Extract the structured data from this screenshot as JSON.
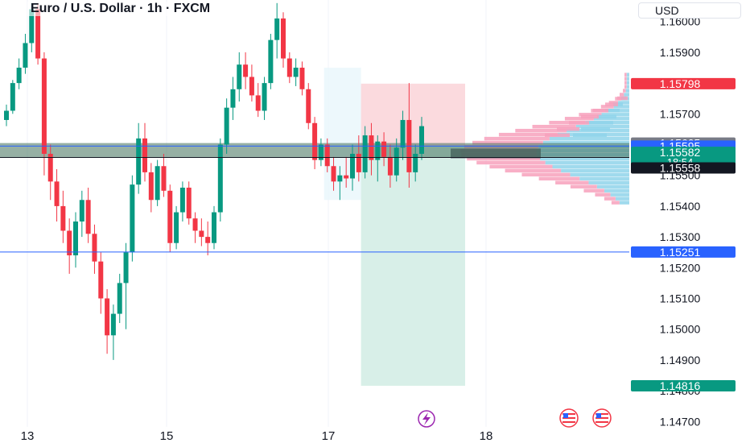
{
  "header": {
    "title": "Euro / U.S. Dollar · 1h · FXCM",
    "currency": "USD"
  },
  "colors": {
    "up": "#089981",
    "down": "#f23645",
    "line": "#2962ff",
    "profit_zone": "#d4ede6",
    "loss_zone": "#fad4d8",
    "accent_blue": "#2962ff",
    "accent_red": "#f23645",
    "accent_green": "#089981",
    "accent_gray": "#787b86"
  },
  "icons": [
    "lightning-event-icon",
    "us-flag-event-icon"
  ],
  "chart_data": {
    "type": "candlestick",
    "symbol": "Euro / U.S. Dollar",
    "interval": "1h",
    "source": "FXCM",
    "y_axis": {
      "ticks": [
        1.147,
        1.148,
        1.149,
        1.15,
        1.151,
        1.152,
        1.153,
        1.154,
        1.155,
        1.157,
        1.159,
        1.16
      ],
      "tick_labels": [
        "1.14700",
        "1.14800",
        "1.14900",
        "1.15000",
        "1.15100",
        "1.15200",
        "1.15300",
        "1.15400",
        "1.15500",
        "1.15700",
        "1.15900",
        "1.16000"
      ],
      "range": [
        1.1463,
        1.1607
      ]
    },
    "x_axis": {
      "ticks": [
        "13",
        "15",
        "17",
        "18"
      ]
    },
    "price_labels": [
      {
        "label": "1.15798",
        "value": 1.15798,
        "color": "#f23645"
      },
      {
        "label": "1.15605",
        "value": 1.15605,
        "color": "#787b86"
      },
      {
        "label": "1.15595",
        "value": 1.15595,
        "color": "#2962ff"
      },
      {
        "label": "1.15582",
        "value": 1.15575,
        "color": "#089981",
        "sub": "18:54"
      },
      {
        "label": "1.15558",
        "value": 1.15524,
        "color": "#131722"
      },
      {
        "label": "1.15251",
        "value": 1.15251,
        "color": "#2962ff"
      },
      {
        "label": "1.14816",
        "value": 1.14816,
        "color": "#089981"
      }
    ],
    "horizontal_lines": [
      1.15595,
      1.15558,
      1.15251
    ],
    "zone_band": [
      1.15558,
      1.15605
    ],
    "position": {
      "side": "short",
      "entry": 1.15595,
      "stop": 1.15798,
      "target": 1.14816
    },
    "candles": [
      [
        1.1568,
        1.1573,
        1.1566,
        1.1571
      ],
      [
        1.1571,
        1.1581,
        1.157,
        1.158
      ],
      [
        1.158,
        1.1588,
        1.1578,
        1.1585
      ],
      [
        1.1585,
        1.1596,
        1.1583,
        1.1593
      ],
      [
        1.1593,
        1.1606,
        1.159,
        1.1604
      ],
      [
        1.1604,
        1.1606,
        1.1586,
        1.1588
      ],
      [
        1.1588,
        1.159,
        1.155,
        1.1557
      ],
      [
        1.1557,
        1.156,
        1.1542,
        1.1548
      ],
      [
        1.1548,
        1.1552,
        1.1535,
        1.154
      ],
      [
        1.154,
        1.1545,
        1.1528,
        1.1532
      ],
      [
        1.1532,
        1.1536,
        1.1518,
        1.1524
      ],
      [
        1.1524,
        1.1538,
        1.152,
        1.1535
      ],
      [
        1.1535,
        1.1545,
        1.153,
        1.1542
      ],
      [
        1.1542,
        1.1546,
        1.1528,
        1.1531
      ],
      [
        1.1531,
        1.1534,
        1.1518,
        1.1522
      ],
      [
        1.1522,
        1.1525,
        1.1505,
        1.151
      ],
      [
        1.151,
        1.1513,
        1.1492,
        1.1498
      ],
      [
        1.1498,
        1.1508,
        1.149,
        1.1505
      ],
      [
        1.1505,
        1.1518,
        1.1502,
        1.1515
      ],
      [
        1.1515,
        1.1528,
        1.15,
        1.1525
      ],
      [
        1.1525,
        1.155,
        1.1522,
        1.1547
      ],
      [
        1.1547,
        1.1567,
        1.1544,
        1.1562
      ],
      [
        1.1562,
        1.1567,
        1.1548,
        1.1551
      ],
      [
        1.1551,
        1.1554,
        1.1538,
        1.1542
      ],
      [
        1.1542,
        1.1555,
        1.154,
        1.1553
      ],
      [
        1.1553,
        1.1557,
        1.1543,
        1.1545
      ],
      [
        1.1545,
        1.1547,
        1.1525,
        1.1528
      ],
      [
        1.1528,
        1.154,
        1.1526,
        1.1538
      ],
      [
        1.1538,
        1.1548,
        1.1535,
        1.1546
      ],
      [
        1.1546,
        1.1548,
        1.1534,
        1.1536
      ],
      [
        1.1536,
        1.1538,
        1.1528,
        1.1532
      ],
      [
        1.1532,
        1.1536,
        1.1527,
        1.153
      ],
      [
        1.153,
        1.1535,
        1.1524,
        1.1528
      ],
      [
        1.1528,
        1.154,
        1.1526,
        1.1538
      ],
      [
        1.1538,
        1.1562,
        1.1535,
        1.156
      ],
      [
        1.156,
        1.1575,
        1.1557,
        1.1572
      ],
      [
        1.1572,
        1.1582,
        1.1568,
        1.1578
      ],
      [
        1.1578,
        1.159,
        1.1574,
        1.1586
      ],
      [
        1.1586,
        1.159,
        1.1578,
        1.1582
      ],
      [
        1.1582,
        1.1586,
        1.1574,
        1.1576
      ],
      [
        1.1576,
        1.158,
        1.1569,
        1.1571
      ],
      [
        1.1571,
        1.1582,
        1.1568,
        1.158
      ],
      [
        1.158,
        1.1596,
        1.1578,
        1.1594
      ],
      [
        1.1594,
        1.1606,
        1.1588,
        1.1601
      ],
      [
        1.1601,
        1.1603,
        1.1585,
        1.1588
      ],
      [
        1.1588,
        1.159,
        1.158,
        1.1582
      ],
      [
        1.1582,
        1.1588,
        1.1579,
        1.1585
      ],
      [
        1.1585,
        1.1587,
        1.1576,
        1.1578
      ],
      [
        1.1578,
        1.158,
        1.1565,
        1.1567
      ],
      [
        1.1567,
        1.1569,
        1.1552,
        1.1555
      ],
      [
        1.1555,
        1.1562,
        1.1553,
        1.156
      ],
      [
        1.156,
        1.1562,
        1.1551,
        1.1553
      ],
      [
        1.1553,
        1.1556,
        1.1545,
        1.1548
      ],
      [
        1.1548,
        1.1553,
        1.1542,
        1.155
      ],
      [
        1.155,
        1.1556,
        1.1546,
        1.1549
      ],
      [
        1.1549,
        1.156,
        1.1545,
        1.1557
      ],
      [
        1.1557,
        1.1563,
        1.1548,
        1.1551
      ],
      [
        1.1551,
        1.1566,
        1.1549,
        1.1563
      ],
      [
        1.1563,
        1.1567,
        1.155,
        1.1555
      ],
      [
        1.1555,
        1.1563,
        1.1548,
        1.1561
      ],
      [
        1.1561,
        1.1564,
        1.1553,
        1.1556
      ],
      [
        1.1556,
        1.156,
        1.1546,
        1.155
      ],
      [
        1.155,
        1.1562,
        1.1548,
        1.1559
      ],
      [
        1.1559,
        1.1571,
        1.1555,
        1.1568
      ],
      [
        1.1568,
        1.158,
        1.1546,
        1.1551
      ],
      [
        1.1551,
        1.156,
        1.1548,
        1.1557
      ],
      [
        1.1557,
        1.1569,
        1.1555,
        1.1566
      ]
    ]
  }
}
